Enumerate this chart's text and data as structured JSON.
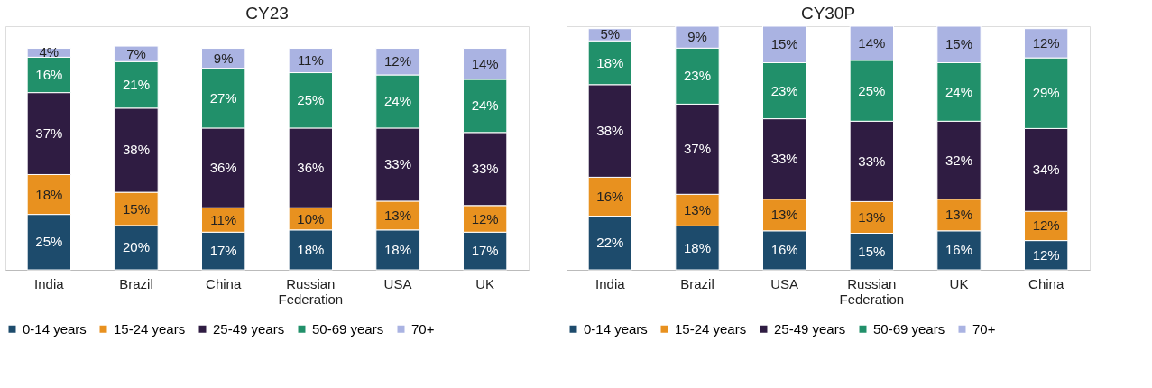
{
  "chart_data": [
    {
      "type": "bar",
      "title": "CY23",
      "stacked": true,
      "legend": "bottom",
      "tick_labels": "x",
      "categories": [
        "India",
        "Brazil",
        "China",
        "Russian Federation",
        "USA",
        "UK"
      ],
      "series": [
        {
          "name": "0-14 years",
          "color": "#1d4b6c",
          "values": [
            25,
            20,
            17,
            18,
            18,
            17
          ],
          "value_labels": [
            "25%",
            "20%",
            "17%",
            "18%",
            "18%",
            "17%"
          ]
        },
        {
          "name": "15-24 years",
          "color": "#e8911f",
          "values": [
            18,
            15,
            11,
            10,
            13,
            12
          ],
          "value_labels": [
            "18%",
            "15%",
            "11%",
            "10%",
            "13%",
            "12%"
          ]
        },
        {
          "name": "25-49 years",
          "color": "#2f1c42",
          "values": [
            37,
            38,
            36,
            36,
            33,
            33
          ],
          "value_labels": [
            "37%",
            "38%",
            "36%",
            "36%",
            "33%",
            "33%"
          ]
        },
        {
          "name": "50-69 years",
          "color": "#21906a",
          "values": [
            16,
            21,
            27,
            25,
            24,
            24
          ],
          "value_labels": [
            "16%",
            "21%",
            "27%",
            "25%",
            "24%",
            "24%"
          ]
        },
        {
          "name": "70+",
          "color": "#aab3e2",
          "values": [
            4,
            7,
            9,
            11,
            12,
            14
          ],
          "value_labels": [
            "4%",
            "7%",
            "9%",
            "11%",
            "12%",
            "14%"
          ]
        }
      ]
    },
    {
      "type": "bar",
      "title": "CY30P",
      "stacked": true,
      "legend": "bottom",
      "tick_labels": "x",
      "categories": [
        "India",
        "Brazil",
        "USA",
        "Russian Federation",
        "UK",
        "China"
      ],
      "series": [
        {
          "name": "0-14 years",
          "color": "#1d4b6c",
          "values": [
            22,
            18,
            16,
            15,
            16,
            12
          ],
          "value_labels": [
            "22%",
            "18%",
            "16%",
            "15%",
            "16%",
            "12%"
          ]
        },
        {
          "name": "15-24 years",
          "color": "#e8911f",
          "values": [
            16,
            13,
            13,
            13,
            13,
            12
          ],
          "value_labels": [
            "16%",
            "13%",
            "13%",
            "13%",
            "13%",
            "12%"
          ]
        },
        {
          "name": "25-49 years",
          "color": "#2f1c42",
          "values": [
            38,
            37,
            33,
            33,
            32,
            34
          ],
          "value_labels": [
            "38%",
            "37%",
            "33%",
            "33%",
            "32%",
            "34%"
          ]
        },
        {
          "name": "50-69 years",
          "color": "#21906a",
          "values": [
            18,
            23,
            23,
            25,
            24,
            29
          ],
          "value_labels": [
            "18%",
            "23%",
            "23%",
            "25%",
            "24%",
            "29%"
          ]
        },
        {
          "name": "70+",
          "color": "#aab3e2",
          "values": [
            5,
            9,
            15,
            14,
            15,
            12
          ],
          "value_labels": [
            "5%",
            "9%",
            "15%",
            "14%",
            "15%",
            "12%"
          ]
        }
      ]
    }
  ]
}
